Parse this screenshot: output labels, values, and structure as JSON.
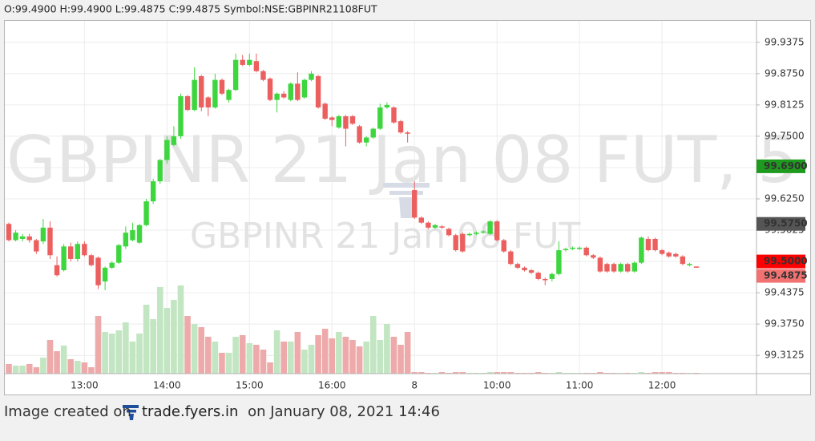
{
  "header": "O:99.4900 H:99.4900 L:99.4875 C:99.4875 Symbol:NSE:GBPINR21108FUT",
  "footer": {
    "prefix": "Image created on",
    "site": "trade.fyers.in",
    "suffix": "on January 08, 2021 14:46"
  },
  "chart_data": {
    "type": "candlestick",
    "watermark": "GBPINR 21 Jan 08 FUT, 5",
    "watermark_2": "GBPINR 21 Jan 08 FUT",
    "up_color": "#3ed63e",
    "down_color": "#ec5f5f",
    "volume_up_color": "#c2e5c2",
    "volume_down_color": "#eeaaaa",
    "grid": true,
    "categories": [
      null,
      null,
      null,
      null,
      null,
      null,
      null,
      null,
      null,
      null,
      null,
      "13:00",
      null,
      null,
      null,
      null,
      null,
      null,
      null,
      null,
      null,
      null,
      null,
      "14:00",
      null,
      null,
      null,
      null,
      null,
      null,
      null,
      null,
      null,
      null,
      null,
      "15:00",
      null,
      null,
      null,
      null,
      null,
      null,
      null,
      null,
      null,
      null,
      null,
      "16:00",
      null,
      null,
      null,
      null,
      null,
      null,
      null,
      null,
      null,
      null,
      null,
      "8",
      null,
      null,
      null,
      null,
      null,
      null,
      null,
      null,
      null,
      null,
      null,
      "10:00",
      null,
      null,
      null,
      null,
      null,
      null,
      null,
      null,
      null,
      null,
      null,
      "11:00",
      null,
      null,
      null,
      null,
      null,
      null,
      null,
      null,
      null,
      null,
      null,
      "12:00",
      null,
      null,
      null,
      null,
      null
    ],
    "open": [
      99.575,
      99.5425,
      99.545,
      99.55,
      99.5425,
      99.54,
      99.5675,
      99.4925,
      99.4825,
      99.53,
      99.505,
      99.535,
      99.5125,
      99.5075,
      99.46,
      99.4875,
      99.4975,
      99.53,
      99.5425,
      99.5375,
      99.5725,
      99.62,
      99.66,
      99.7025,
      99.7325,
      99.75,
      99.83,
      99.8025,
      99.87,
      99.8275,
      99.8075,
      99.8625,
      99.8225,
      99.8425,
      99.9025,
      99.8925,
      99.9,
      99.88,
      99.865,
      99.8225,
      99.835,
      99.8225,
      99.855,
      99.8275,
      99.8625,
      99.87,
      99.815,
      99.7875,
      99.7675,
      99.79,
      99.79,
      99.77,
      99.7375,
      99.7475,
      99.765,
      99.8075,
      99.8075,
      99.78,
      99.7575,
      99.6425,
      99.5875,
      99.5775,
      99.5675,
      99.57,
      99.565,
      99.5525,
      99.555,
      99.5525,
      99.555,
      99.5575,
      99.555,
      99.58,
      99.5425,
      99.52,
      99.495,
      99.4875,
      99.4825,
      99.4775,
      99.465,
      99.465,
      99.475,
      99.5225,
      99.525,
      99.525,
      99.5275,
      99.5125,
      99.5075,
      99.495,
      99.495,
      99.48,
      99.495,
      99.48,
      99.4975,
      99.545,
      99.545,
      99.5225,
      99.5175,
      99.515,
      99.51,
      99.4925,
      99.49
    ],
    "high": [
      99.5775,
      99.5625,
      99.555,
      99.555,
      99.545,
      99.585,
      99.58,
      99.51,
      99.535,
      99.5375,
      99.54,
      99.54,
      99.515,
      99.51,
      99.49,
      99.5,
      99.535,
      99.57,
      99.5775,
      99.575,
      99.625,
      99.665,
      99.705,
      99.75,
      99.77,
      99.835,
      99.8325,
      99.8875,
      99.8725,
      99.83,
      99.875,
      99.865,
      99.845,
      99.915,
      99.9125,
      99.915,
      99.915,
      99.8825,
      99.8675,
      99.8375,
      99.84,
      99.8575,
      99.8775,
      99.865,
      99.88,
      99.8725,
      99.8175,
      99.79,
      99.7925,
      99.7925,
      99.7925,
      99.7725,
      99.75,
      99.7675,
      99.815,
      99.8175,
      99.81,
      99.7825,
      99.76,
      99.66,
      99.59,
      99.58,
      99.575,
      99.5725,
      99.5675,
      99.555,
      99.5575,
      99.5575,
      99.56,
      99.5625,
      99.5825,
      99.5825,
      99.545,
      99.5225,
      99.4975,
      99.49,
      99.485,
      99.48,
      99.4675,
      99.4775,
      99.54,
      99.5275,
      99.53,
      99.53,
      99.53,
      99.515,
      99.51,
      99.4975,
      99.4975,
      99.4975,
      99.4975,
      99.5,
      99.55,
      99.55,
      99.5475,
      99.525,
      99.52,
      99.5175,
      99.5125,
      99.4975,
      99.49
    ],
    "low": [
      99.54,
      99.54,
      99.54,
      99.5375,
      99.515,
      99.535,
      99.505,
      99.47,
      99.48,
      99.5,
      99.5,
      99.51,
      99.49,
      99.445,
      99.4425,
      99.485,
      99.495,
      99.525,
      99.54,
      99.535,
      99.57,
      99.615,
      99.655,
      99.695,
      99.73,
      99.745,
      99.8,
      99.8,
      99.8,
      99.79,
      99.805,
      99.8325,
      99.8175,
      99.84,
      99.89,
      99.89,
      99.8775,
      99.86,
      99.82,
      99.7975,
      99.825,
      99.82,
      99.82,
      99.825,
      99.86,
      99.805,
      99.7825,
      99.77,
      99.765,
      99.73,
      99.7725,
      99.735,
      99.73,
      99.745,
      99.7625,
      99.805,
      99.775,
      99.755,
      99.7375,
      99.585,
      99.575,
      99.565,
      99.565,
      99.565,
      99.55,
      99.52,
      99.5175,
      99.55,
      99.5525,
      99.555,
      99.5525,
      99.54,
      99.5175,
      99.4925,
      99.485,
      99.48,
      99.475,
      99.4625,
      99.4525,
      99.46,
      99.4725,
      99.52,
      99.5225,
      99.5225,
      99.51,
      99.505,
      99.4775,
      99.4775,
      99.4775,
      99.4775,
      99.4775,
      99.4775,
      99.495,
      99.52,
      99.52,
      99.5125,
      99.5075,
      99.5075,
      99.4925,
      99.49,
      99.4875
    ],
    "close": [
      99.5425,
      99.5575,
      99.55,
      99.5425,
      99.52,
      99.5675,
      99.5125,
      99.4725,
      99.53,
      99.505,
      99.535,
      99.5125,
      99.4925,
      99.4525,
      99.4875,
      99.4975,
      99.5325,
      99.5575,
      99.5625,
      99.5725,
      99.62,
      99.66,
      99.7025,
      99.7425,
      99.75,
      99.83,
      99.8025,
      99.8625,
      99.8075,
      99.8075,
      99.8625,
      99.835,
      99.8425,
      99.9025,
      99.8925,
      99.9025,
      99.88,
      99.8625,
      99.8225,
      99.835,
      99.8275,
      99.855,
      99.8225,
      99.8625,
      99.875,
      99.8075,
      99.785,
      99.7825,
      99.79,
      99.765,
      99.775,
      99.7375,
      99.7475,
      99.765,
      99.8075,
      99.8125,
      99.7775,
      99.7575,
      99.755,
      99.5875,
      99.5775,
      99.5675,
      99.5725,
      99.5675,
      99.5525,
      99.5225,
      99.52,
      99.555,
      99.5575,
      99.56,
      99.58,
      99.5425,
      99.52,
      99.495,
      99.4875,
      99.4825,
      99.4775,
      99.465,
      99.4625,
      99.475,
      99.5225,
      99.525,
      99.5275,
      99.5275,
      99.5125,
      99.5075,
      99.48,
      99.48,
      99.48,
      99.495,
      99.48,
      99.4975,
      99.5475,
      99.5225,
      99.5225,
      99.515,
      99.51,
      99.51,
      99.495,
      99.495,
      99.4875
    ],
    "volume": [
      12,
      10,
      10,
      12,
      8,
      20,
      42,
      28,
      35,
      18,
      16,
      14,
      8,
      72,
      52,
      50,
      54,
      64,
      40,
      50,
      86,
      68,
      108,
      82,
      92,
      110,
      72,
      62,
      58,
      46,
      40,
      26,
      26,
      46,
      48,
      38,
      36,
      30,
      14,
      54,
      40,
      40,
      52,
      30,
      36,
      48,
      56,
      44,
      52,
      46,
      42,
      34,
      40,
      72,
      42,
      62,
      46,
      36,
      52,
      2,
      2,
      1,
      1,
      2,
      1,
      2,
      2,
      1,
      1,
      1,
      2,
      2,
      2,
      2,
      1,
      1,
      1,
      2,
      1,
      1,
      2,
      1,
      1,
      1,
      1,
      1,
      2,
      1,
      1,
      1,
      1,
      1,
      2,
      1,
      2,
      2,
      2,
      1,
      1,
      1,
      1
    ],
    "ylim": [
      99.276,
      99.982
    ],
    "yticks": [
      99.9375,
      {
        "value": 99.875,
        "label": "99.8750"
      },
      99.8125,
      {
        "value": 99.75,
        "label": "99.7500"
      },
      99.6875,
      {
        "value": 99.625,
        "label": "99.6250"
      },
      99.5625,
      {
        "value": 99.5,
        "label": "99.5000"
      },
      99.4375,
      {
        "value": 99.375,
        "label": "99.3750"
      },
      99.3125
    ],
    "price_labels": [
      {
        "value": 99.69,
        "label": "99.6900",
        "color": "#1e9a1e"
      },
      {
        "value": 99.575,
        "label": "99.5750",
        "color": "#555555"
      },
      {
        "value": 99.5,
        "label": "99.5000",
        "color": "#ff0000"
      },
      {
        "value": 99.4875,
        "label": "99.4875",
        "color": "#f27272"
      }
    ]
  }
}
